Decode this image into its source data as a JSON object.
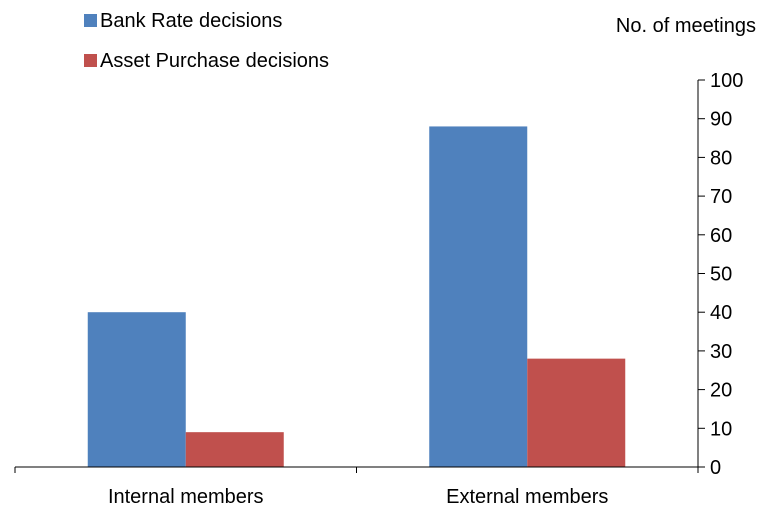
{
  "chart_data": {
    "type": "bar",
    "categories": [
      "Internal members",
      "External members"
    ],
    "series": [
      {
        "name": "Bank Rate decisions",
        "values": [
          40,
          88
        ],
        "color": "#4f81bd"
      },
      {
        "name": "Asset Purchase decisions",
        "values": [
          9,
          28
        ],
        "color": "#c0504d"
      }
    ],
    "ylabel": "No. of meetings",
    "ylim": [
      0,
      100
    ],
    "yticks": [
      0,
      10,
      20,
      30,
      40,
      50,
      60,
      70,
      80,
      90,
      100
    ],
    "y_axis_side": "right",
    "grid": false,
    "legend": "top-left"
  }
}
